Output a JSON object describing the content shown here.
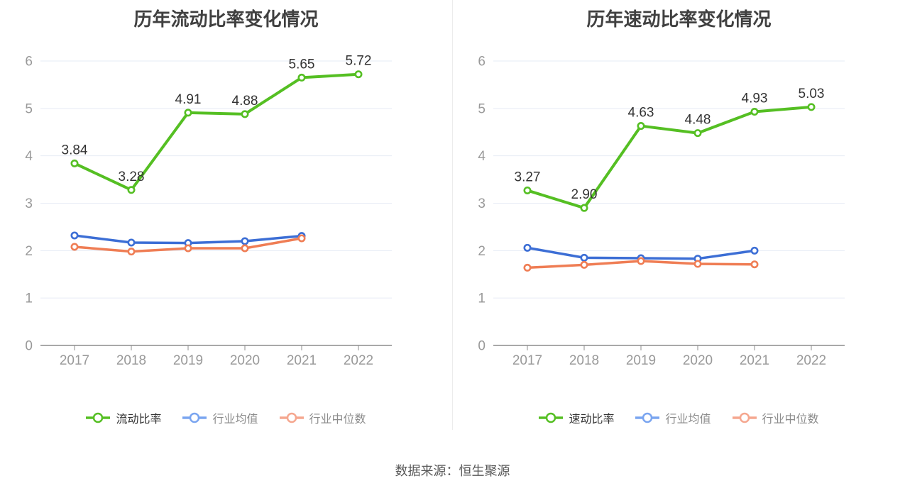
{
  "source_caption": "数据来源：恒生聚源",
  "colors": {
    "green": "#55bf23",
    "blue": "#3c6ed5",
    "orange": "#ef7d54",
    "legend_blue": "#7aa5f0",
    "legend_orange": "#f5a78f",
    "grid": "#e6ebf5",
    "axis": "#8c8c8c",
    "tick_label": "#999999",
    "title": "#404040",
    "value_label": "#333333"
  },
  "chart_data": [
    {
      "type": "line",
      "title": "历年流动比率变化情况",
      "x": [
        "2017",
        "2018",
        "2019",
        "2020",
        "2021",
        "2022"
      ],
      "xlabel": "",
      "ylabel": "",
      "ylim": [
        0,
        6
      ],
      "ytick_interval": 1,
      "grid": true,
      "legend_position": "bottom",
      "series": [
        {
          "key": "current-ratio",
          "name": "流动比率",
          "color": "#55bf23",
          "legend_color": "#55bf23",
          "line_width": 4,
          "values": [
            3.84,
            3.28,
            4.91,
            4.88,
            5.65,
            5.72
          ],
          "labels": [
            "3.84",
            "3.28",
            "4.91",
            "4.88",
            "5.65",
            "5.72"
          ]
        },
        {
          "key": "industry-average",
          "name": "行业均值",
          "color": "#3c6ed5",
          "legend_color": "#7aa5f0",
          "line_width": 3.5,
          "values": [
            2.32,
            2.17,
            2.16,
            2.2,
            2.31
          ]
        },
        {
          "key": "industry-median",
          "name": "行业中位数",
          "color": "#ef7d54",
          "legend_color": "#f5a78f",
          "line_width": 3.5,
          "values": [
            2.08,
            1.98,
            2.05,
            2.05,
            2.26
          ]
        }
      ]
    },
    {
      "type": "line",
      "title": "历年速动比率变化情况",
      "x": [
        "2017",
        "2018",
        "2019",
        "2020",
        "2021",
        "2022"
      ],
      "xlabel": "",
      "ylabel": "",
      "ylim": [
        0,
        6
      ],
      "ytick_interval": 1,
      "grid": true,
      "legend_position": "bottom",
      "series": [
        {
          "key": "quick-ratio",
          "name": "速动比率",
          "color": "#55bf23",
          "legend_color": "#55bf23",
          "line_width": 4,
          "values": [
            3.27,
            2.9,
            4.63,
            4.48,
            4.93,
            5.03
          ],
          "labels": [
            "3.27",
            "2.90",
            "4.63",
            "4.48",
            "4.93",
            "5.03"
          ]
        },
        {
          "key": "industry-average",
          "name": "行业均值",
          "color": "#3c6ed5",
          "legend_color": "#7aa5f0",
          "line_width": 3.5,
          "values": [
            2.06,
            1.85,
            1.84,
            1.83,
            2.0
          ]
        },
        {
          "key": "industry-median",
          "name": "行业中位数",
          "color": "#ef7d54",
          "legend_color": "#f5a78f",
          "line_width": 3.5,
          "values": [
            1.64,
            1.7,
            1.78,
            1.72,
            1.71
          ]
        }
      ]
    }
  ]
}
